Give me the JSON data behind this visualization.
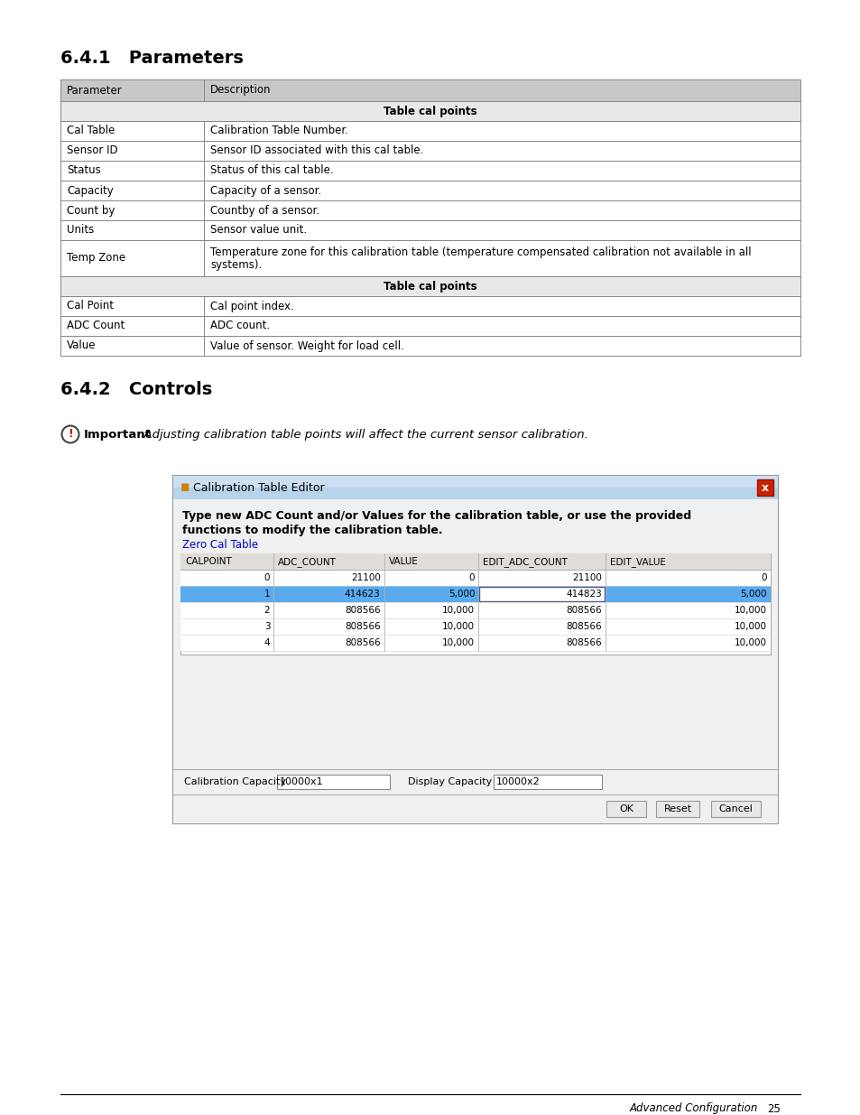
{
  "page_bg": "#ffffff",
  "section1_title": "6.4.1   Parameters",
  "section2_title": "6.4.2   Controls",
  "table_header": [
    "Parameter",
    "Description"
  ],
  "table_header_bg": "#c8c8c8",
  "table_subheader_bg": "#e8e8e8",
  "table_subheader_text": "Table cal points",
  "table_rows": [
    [
      "Cal Table",
      "Calibration Table Number."
    ],
    [
      "Sensor ID",
      "Sensor ID associated with this cal table."
    ],
    [
      "Status",
      "Status of this cal table."
    ],
    [
      "Capacity",
      "Capacity of a sensor."
    ],
    [
      "Count by",
      "Countby of a sensor."
    ],
    [
      "Units",
      "Sensor value unit."
    ],
    [
      "Temp Zone",
      "Temperature zone for this calibration table (temperature compensated calibration not available in all\nsystems)."
    ]
  ],
  "table_rows2": [
    [
      "Cal Point",
      "Cal point index."
    ],
    [
      "ADC Count",
      "ADC count."
    ],
    [
      "Value",
      "Value of sensor. Weight for load cell."
    ]
  ],
  "table_border": "#888888",
  "important_text": "Important",
  "important_body": "  Adjusting calibration table points will affect the current sensor calibration.",
  "dialog_title": "Calibration Table Editor",
  "dialog_desc1": "Type new ADC Count and/or Values for the calibration table, or use the provided",
  "dialog_desc2": "functions to modify the calibration table.",
  "dialog_link": "Zero Cal Table",
  "dialog_col_headers": [
    "CALPOINT",
    "ADC_COUNT",
    "VALUE",
    "EDIT_ADC_COUNT",
    "EDIT_VALUE"
  ],
  "dialog_rows": [
    [
      "0",
      "21100",
      "0",
      "21100",
      "0"
    ],
    [
      "1",
      "414623",
      "5,000",
      "414823",
      "5,000"
    ],
    [
      "2",
      "808566",
      "10,000",
      "808566",
      "10,000"
    ],
    [
      "3",
      "808566",
      "10,000",
      "808566",
      "10,000"
    ],
    [
      "4",
      "808566",
      "10,000",
      "808566",
      "10,000"
    ]
  ],
  "dialog_selected_row": 1,
  "dialog_row_bg_selected": "#5aabee",
  "footer_text": "Advanced Configuration",
  "footer_page": "25",
  "title_font_size": 13,
  "body_font_size": 9,
  "table_font_size": 8.5
}
